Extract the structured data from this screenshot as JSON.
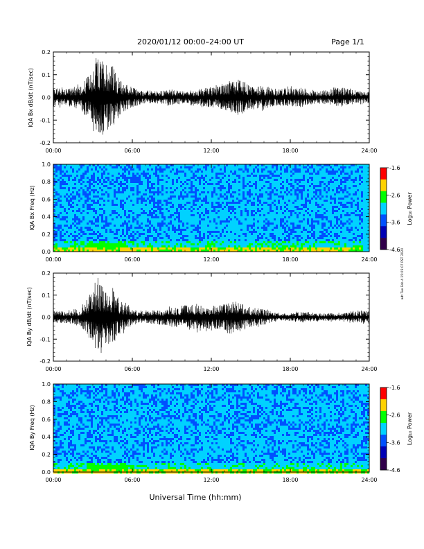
{
  "header": {
    "title": "2020/01/12  00:00–24:00 UT",
    "page": "Page 1/1"
  },
  "footer": {
    "xlabel": "Universal Time (hh:mm)"
  },
  "side_note": "adt Tue Feb 4 15:05:07 PST 2020",
  "colorbar": {
    "label": "Log₁₀ Power",
    "ticks": [
      "-1.6",
      "-2.6",
      "-3.6",
      "-4.6"
    ],
    "colors": [
      "#ff0000",
      "#ffd200",
      "#00ff00",
      "#00d2ff",
      "#0050ff",
      "#0000b4",
      "#30004a"
    ]
  },
  "x_ticks": [
    "00:00",
    "06:00",
    "12:00",
    "18:00",
    "24:00"
  ],
  "chart_data": [
    {
      "type": "line",
      "ylabel": "IQA Bx dB/dt (nT/sec)",
      "xlim": [
        0,
        24
      ],
      "ylim": [
        -0.2,
        0.2
      ],
      "y_ticks": [
        "0.2",
        "0.1",
        "0.0",
        "-0.1",
        "-0.2"
      ],
      "x": [
        0,
        1,
        2,
        2.8,
        3.4,
        3.8,
        4.2,
        4.6,
        5,
        6,
        7,
        8,
        9,
        10,
        11,
        12,
        13,
        14,
        14.5,
        15,
        16,
        17,
        18,
        19,
        20,
        21,
        22,
        23,
        24
      ],
      "envelope": [
        0.05,
        0.04,
        0.06,
        0.12,
        0.19,
        0.19,
        0.18,
        0.15,
        0.09,
        0.05,
        0.03,
        0.03,
        0.04,
        0.03,
        0.04,
        0.05,
        0.06,
        0.09,
        0.08,
        0.05,
        0.06,
        0.04,
        0.05,
        0.04,
        0.03,
        0.04,
        0.05,
        0.03,
        0.03
      ]
    },
    {
      "type": "heatmap",
      "ylabel": "IQA Bx Freq (Hz)",
      "xlim": [
        0,
        24
      ],
      "ylim": [
        0,
        1.0
      ],
      "y_ticks": [
        "1.0",
        "0.8",
        "0.6",
        "0.4",
        "0.2",
        "0.0"
      ]
    },
    {
      "type": "line",
      "ylabel": "IQA By dB/dt (nT/sec)",
      "xlim": [
        0,
        24
      ],
      "ylim": [
        -0.2,
        0.2
      ],
      "y_ticks": [
        "0.2",
        "0.1",
        "0.0",
        "-0.1",
        "-0.2"
      ],
      "x": [
        0,
        1,
        2,
        2.8,
        3.4,
        3.8,
        4.2,
        4.6,
        5,
        6,
        7,
        8,
        9,
        10,
        11,
        12,
        13,
        14,
        14.5,
        15,
        16,
        17,
        18,
        19,
        20,
        21,
        22,
        23,
        24
      ],
      "envelope": [
        0.03,
        0.03,
        0.04,
        0.12,
        0.18,
        0.15,
        0.14,
        0.13,
        0.09,
        0.04,
        0.03,
        0.04,
        0.05,
        0.06,
        0.07,
        0.06,
        0.07,
        0.08,
        0.07,
        0.05,
        0.04,
        0.02,
        0.02,
        0.03,
        0.02,
        0.02,
        0.02,
        0.03,
        0.03
      ]
    },
    {
      "type": "heatmap",
      "ylabel": "IQA By Freq (Hz)",
      "xlim": [
        0,
        24
      ],
      "ylim": [
        0,
        1.0
      ],
      "y_ticks": [
        "1.0",
        "0.8",
        "0.6",
        "0.4",
        "0.2",
        "0.0"
      ]
    }
  ]
}
